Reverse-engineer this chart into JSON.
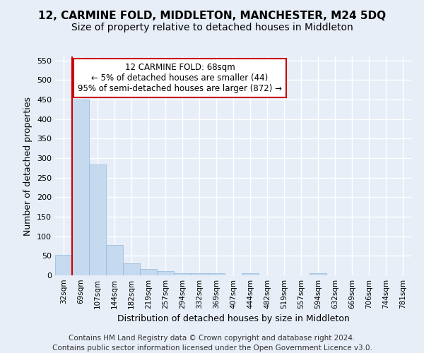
{
  "title": "12, CARMINE FOLD, MIDDLETON, MANCHESTER, M24 5DQ",
  "subtitle": "Size of property relative to detached houses in Middleton",
  "xlabel": "Distribution of detached houses by size in Middleton",
  "ylabel": "Number of detached properties",
  "categories": [
    "32sqm",
    "69sqm",
    "107sqm",
    "144sqm",
    "182sqm",
    "219sqm",
    "257sqm",
    "294sqm",
    "332sqm",
    "369sqm",
    "407sqm",
    "444sqm",
    "482sqm",
    "519sqm",
    "557sqm",
    "594sqm",
    "632sqm",
    "669sqm",
    "706sqm",
    "744sqm",
    "781sqm"
  ],
  "values": [
    53,
    450,
    283,
    78,
    30,
    16,
    10,
    5,
    5,
    6,
    0,
    5,
    0,
    0,
    0,
    5,
    0,
    0,
    0,
    0,
    0
  ],
  "bar_color": "#c5d9ef",
  "bar_edge_color": "#90b8d8",
  "vline_index": 1,
  "vline_color": "#cc0000",
  "annotation_line1": "12 CARMINE FOLD: 68sqm",
  "annotation_line2": "← 5% of detached houses are smaller (44)",
  "annotation_line3": "95% of semi-detached houses are larger (872) →",
  "annotation_box_color": "#ffffff",
  "annotation_box_edge_color": "#cc0000",
  "ylim": [
    0,
    560
  ],
  "yticks": [
    0,
    50,
    100,
    150,
    200,
    250,
    300,
    350,
    400,
    450,
    500,
    550
  ],
  "background_color": "#e8eef8",
  "grid_color": "#ffffff",
  "footer": "Contains HM Land Registry data © Crown copyright and database right 2024.\nContains public sector information licensed under the Open Government Licence v3.0.",
  "title_fontsize": 11,
  "subtitle_fontsize": 10,
  "xlabel_fontsize": 9,
  "ylabel_fontsize": 9,
  "tick_fontsize": 8,
  "footer_fontsize": 7.5
}
